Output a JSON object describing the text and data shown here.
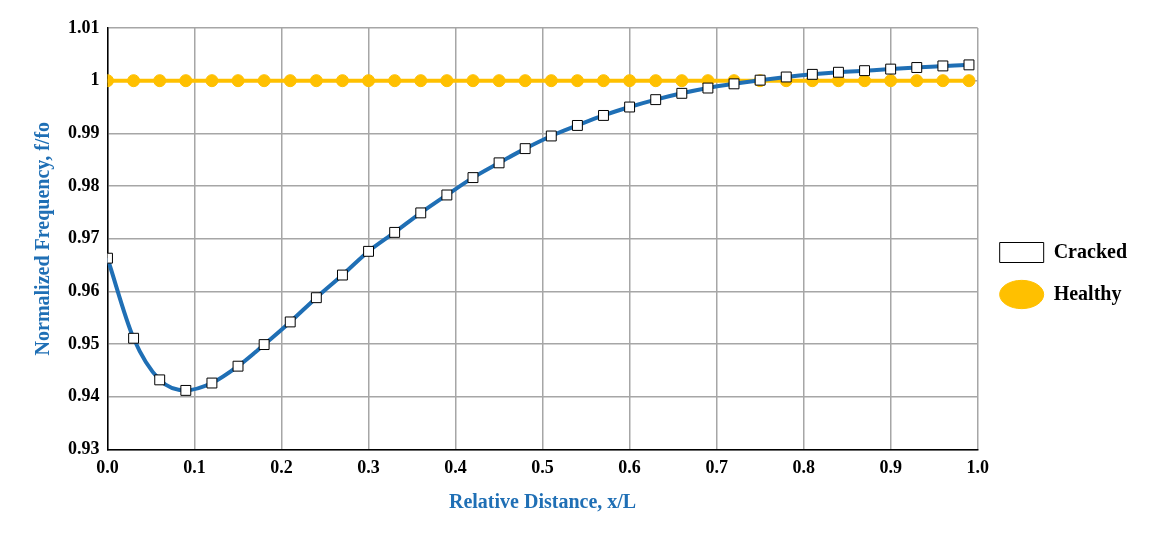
{
  "chart_data": {
    "type": "line",
    "xlabel": "Relative Distance, x/L",
    "ylabel": "Normalized Frequency, f/fo",
    "xlim": [
      0,
      1
    ],
    "xticks": [
      {
        "value": 0,
        "label": "0.0"
      },
      {
        "value": 0.1,
        "label": "0.1"
      },
      {
        "value": 0.2,
        "label": "0.2"
      },
      {
        "value": 0.3,
        "label": "0.3"
      },
      {
        "value": 0.4,
        "label": "0.4"
      },
      {
        "value": 0.5,
        "label": "0.5"
      },
      {
        "value": 0.6,
        "label": "0.6"
      },
      {
        "value": 0.7,
        "label": "0.7"
      },
      {
        "value": 0.8,
        "label": "0.8"
      },
      {
        "value": 0.9,
        "label": "0.9"
      },
      {
        "value": 1,
        "label": "1.0"
      }
    ],
    "ylim": [
      0.93,
      1.01
    ],
    "yticks": [
      0.93,
      0.94,
      0.95,
      0.96,
      0.97,
      0.98,
      0.99,
      1,
      1.01
    ],
    "x": [
      0,
      0.03,
      0.06,
      0.09,
      0.12,
      0.15,
      0.18,
      0.21,
      0.24,
      0.27,
      0.3,
      0.33,
      0.36,
      0.39,
      0.42,
      0.45,
      0.48,
      0.51,
      0.54,
      0.57,
      0.6,
      0.63,
      0.66,
      0.69,
      0.72,
      0.75,
      0.78,
      0.81,
      0.84,
      0.87,
      0.9,
      0.93,
      0.96,
      0.99
    ],
    "grid": true,
    "legend": "right",
    "line_style": "solid",
    "series": [
      {
        "name": "Healthy",
        "color": "#ffc000",
        "marker": "circle",
        "values": [
          1,
          1,
          1,
          1,
          1,
          1,
          1,
          1,
          1,
          1,
          1,
          1,
          1,
          1,
          1,
          1,
          1,
          1,
          1,
          1,
          1,
          1,
          1,
          1,
          1,
          1,
          1,
          1,
          1,
          1,
          1,
          1,
          1,
          1
        ]
      },
      {
        "name": "Cracked",
        "color": "#1f6fb5",
        "marker": "square",
        "values": [
          0.9663,
          0.9511,
          0.9432,
          0.9412,
          0.9426,
          0.9458,
          0.9499,
          0.9542,
          0.9588,
          0.9631,
          0.9676,
          0.9712,
          0.9749,
          0.9783,
          0.9816,
          0.9844,
          0.9871,
          0.9895,
          0.9915,
          0.9934,
          0.995,
          0.9964,
          0.9976,
          0.9986,
          0.9994,
          1.0001,
          1.0007,
          1.0012,
          1.0016,
          1.0019,
          1.0022,
          1.0025,
          1.0028,
          1.003
        ]
      }
    ]
  }
}
